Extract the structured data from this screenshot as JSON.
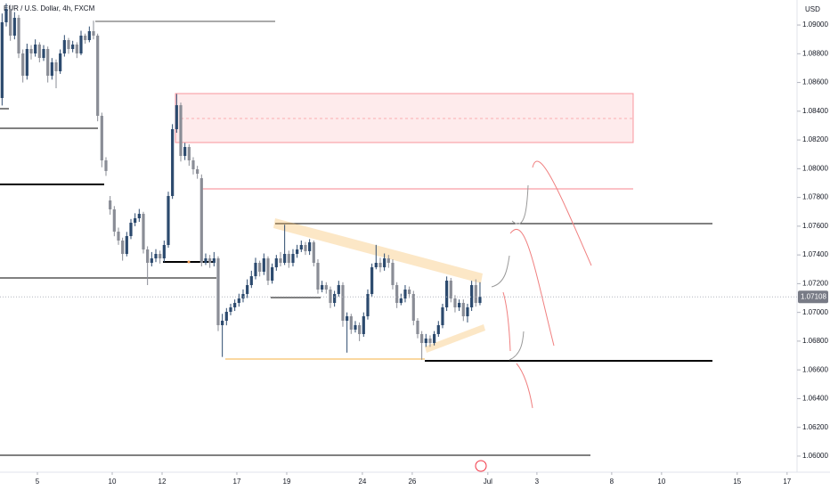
{
  "chart_data": {
    "type": "candlestick",
    "title": "EUR / U.S. Dollar, 4h, FXCM",
    "currency": "USD",
    "up_color": "#2c4a6e",
    "down_color": "#8a8d96",
    "ylim": [
      1.05888,
      1.09174
    ],
    "xlim": [
      -0.5,
      191.3
    ],
    "yticks": [
      {
        "value": 1.06,
        "label": "1.06000"
      },
      {
        "value": 1.062,
        "label": "1.06200"
      },
      {
        "value": 1.064,
        "label": "1.06400"
      },
      {
        "value": 1.066,
        "label": "1.06600"
      },
      {
        "value": 1.068,
        "label": "1.06800"
      },
      {
        "value": 1.07,
        "label": "1.07000"
      },
      {
        "value": 1.072,
        "label": "1.07200"
      },
      {
        "value": 1.074,
        "label": "1.07400"
      },
      {
        "value": 1.076,
        "label": "1.07600"
      },
      {
        "value": 1.078,
        "label": "1.07800"
      },
      {
        "value": 1.08,
        "label": "1.08000"
      },
      {
        "value": 1.082,
        "label": "1.08200"
      },
      {
        "value": 1.084,
        "label": "1.08400"
      },
      {
        "value": 1.086,
        "label": "1.08600"
      },
      {
        "value": 1.088,
        "label": "1.08800"
      },
      {
        "value": 1.09,
        "label": "1.09000"
      }
    ],
    "xticks": [
      {
        "value": 8.5,
        "label": "5"
      },
      {
        "value": 26.5,
        "label": "10"
      },
      {
        "value": 38.5,
        "label": "12"
      },
      {
        "value": 56.5,
        "label": "17"
      },
      {
        "value": 68.5,
        "label": "19"
      },
      {
        "value": 86.7,
        "label": "24"
      },
      {
        "value": 98.7,
        "label": "26"
      },
      {
        "value": 116.9,
        "label": "Jul"
      },
      {
        "value": 128.7,
        "label": "3"
      },
      {
        "value": 146.7,
        "label": "8"
      },
      {
        "value": 158.7,
        "label": "10"
      },
      {
        "value": 176.9,
        "label": "15"
      },
      {
        "value": 188.9,
        "label": "17"
      }
    ],
    "last_price": 1.07108,
    "ohlc": [
      [
        1.08492,
        1.0908,
        1.0844,
        1.09019
      ],
      [
        1.09019,
        1.0915,
        1.0899,
        1.09112
      ],
      [
        1.09112,
        1.0914,
        1.0889,
        1.08926
      ],
      [
        1.08926,
        1.0909,
        1.089,
        1.0905
      ],
      [
        1.0905,
        1.0907,
        1.0877,
        1.08802
      ],
      [
        1.08802,
        1.0883,
        1.086,
        1.08647
      ],
      [
        1.08647,
        1.0887,
        1.0862,
        1.08833
      ],
      [
        1.08833,
        1.0886,
        1.0876,
        1.08802
      ],
      [
        1.08802,
        1.089,
        1.0878,
        1.08864
      ],
      [
        1.08864,
        1.0888,
        1.0874,
        1.08771
      ],
      [
        1.08771,
        1.0886,
        1.0875,
        1.08833
      ],
      [
        1.08833,
        1.0885,
        1.086,
        1.08647
      ],
      [
        1.08647,
        1.0877,
        1.0862,
        1.0874
      ],
      [
        1.0874,
        1.0876,
        1.0856,
        1.08678
      ],
      [
        1.08678,
        1.0883,
        1.0866,
        1.08802
      ],
      [
        1.08802,
        1.0893,
        1.0878,
        1.08895
      ],
      [
        1.08895,
        1.0891,
        1.088,
        1.08833
      ],
      [
        1.08833,
        1.0889,
        1.0881,
        1.08864
      ],
      [
        1.08864,
        1.0888,
        1.0877,
        1.08802
      ],
      [
        1.08802,
        1.0896,
        1.0879,
        1.08926
      ],
      [
        1.08926,
        1.0894,
        1.0887,
        1.08895
      ],
      [
        1.08895,
        1.0899,
        1.0888,
        1.08957
      ],
      [
        1.08957,
        1.0903,
        1.089,
        1.08926
      ],
      [
        1.08926,
        1.0894,
        1.0833,
        1.08368
      ],
      [
        1.08368,
        1.0839,
        1.0801,
        1.08058
      ],
      [
        1.08058,
        1.0808,
        1.0795,
        1.07984
      ],
      [
        1.07779,
        1.0781,
        1.0768,
        1.07717
      ],
      [
        1.07717,
        1.0774,
        1.0753,
        1.07562
      ],
      [
        1.07562,
        1.0759,
        1.0747,
        1.075
      ],
      [
        1.075,
        1.0752,
        1.0736,
        1.07407
      ],
      [
        1.07407,
        1.0756,
        1.0739,
        1.07531
      ],
      [
        1.07531,
        1.0765,
        1.0751,
        1.07624
      ],
      [
        1.07624,
        1.0769,
        1.076,
        1.07655
      ],
      [
        1.07655,
        1.0772,
        1.0763,
        1.07686
      ],
      [
        1.07686,
        1.077,
        1.0741,
        1.07438
      ],
      [
        1.07438,
        1.0746,
        1.0719,
        1.07345
      ],
      [
        1.07345,
        1.0742,
        1.0732,
        1.07376
      ],
      [
        1.07376,
        1.0744,
        1.0735,
        1.07407
      ],
      [
        1.07407,
        1.0743,
        1.0734,
        1.07376
      ],
      [
        1.07376,
        1.075,
        1.0735,
        1.07469
      ],
      [
        1.07469,
        1.0784,
        1.0745,
        1.0781
      ],
      [
        1.0781,
        1.0831,
        1.0779,
        1.08275
      ],
      [
        1.08275,
        1.0852,
        1.0825,
        1.08442
      ],
      [
        1.08442,
        1.0846,
        1.0805,
        1.08089
      ],
      [
        1.08089,
        1.0818,
        1.0806,
        1.08151
      ],
      [
        1.08151,
        1.0817,
        1.0802,
        1.08058
      ],
      [
        1.08058,
        1.0808,
        1.0796,
        1.07996
      ],
      [
        1.07996,
        1.0802,
        1.0793,
        1.07965
      ],
      [
        1.07934,
        1.0796,
        1.0732,
        1.07345
      ],
      [
        1.07345,
        1.0741,
        1.0733,
        1.07376
      ],
      [
        1.07376,
        1.074,
        1.0731,
        1.07345
      ],
      [
        1.07345,
        1.0742,
        1.0732,
        1.07376
      ],
      [
        1.07376,
        1.0739,
        1.0687,
        1.06911
      ],
      [
        1.06911,
        1.0699,
        1.0669,
        1.06942
      ],
      [
        1.06942,
        1.0703,
        1.0691,
        1.07004
      ],
      [
        1.07004,
        1.0706,
        1.0698,
        1.07035
      ],
      [
        1.07035,
        1.0709,
        1.0701,
        1.07066
      ],
      [
        1.07066,
        1.0713,
        1.0704,
        1.07097
      ],
      [
        1.07097,
        1.0716,
        1.0707,
        1.07128
      ],
      [
        1.07128,
        1.0723,
        1.071,
        1.0719
      ],
      [
        1.0719,
        1.0729,
        1.0717,
        1.07252
      ],
      [
        1.07252,
        1.0738,
        1.0723,
        1.07345
      ],
      [
        1.07345,
        1.0736,
        1.0725,
        1.07283
      ],
      [
        1.07283,
        1.0741,
        1.0726,
        1.07376
      ],
      [
        1.07376,
        1.0739,
        1.0719,
        1.07221
      ],
      [
        1.07221,
        1.0734,
        1.072,
        1.07314
      ],
      [
        1.07314,
        1.074,
        1.0729,
        1.07376
      ],
      [
        1.07376,
        1.0742,
        1.0732,
        1.07345
      ],
      [
        1.07345,
        1.0761,
        1.0733,
        1.07407
      ],
      [
        1.07407,
        1.0743,
        1.0731,
        1.07345
      ],
      [
        1.07345,
        1.0744,
        1.0732,
        1.07407
      ],
      [
        1.07407,
        1.0747,
        1.0738,
        1.07438
      ],
      [
        1.07438,
        1.075,
        1.0742,
        1.07469
      ],
      [
        1.07469,
        1.0749,
        1.074,
        1.07426
      ],
      [
        1.07426,
        1.0751,
        1.074,
        1.07488
      ],
      [
        1.07488,
        1.075,
        1.0732,
        1.07345
      ],
      [
        1.07345,
        1.0737,
        1.0713,
        1.07159
      ],
      [
        1.07159,
        1.0722,
        1.0714,
        1.0719
      ],
      [
        1.0719,
        1.0721,
        1.0713,
        1.07159
      ],
      [
        1.07159,
        1.0718,
        1.0703,
        1.07066
      ],
      [
        1.07066,
        1.0715,
        1.0704,
        1.07128
      ],
      [
        1.07128,
        1.0722,
        1.0711,
        1.0719
      ],
      [
        1.0719,
        1.0721,
        1.069,
        1.06942
      ],
      [
        1.06942,
        1.07,
        1.0672,
        1.06973
      ],
      [
        1.06973,
        1.0699,
        1.0685,
        1.0688
      ],
      [
        1.0688,
        1.0694,
        1.0686,
        1.06911
      ],
      [
        1.06911,
        1.0693,
        1.068,
        1.06849
      ],
      [
        1.06849,
        1.07,
        1.0683,
        1.06973
      ],
      [
        1.06973,
        1.0716,
        1.0695,
        1.07128
      ],
      [
        1.07128,
        1.0734,
        1.0711,
        1.07314
      ],
      [
        1.07314,
        1.0747,
        1.073,
        1.07345
      ],
      [
        1.07345,
        1.0738,
        1.0728,
        1.07314
      ],
      [
        1.07314,
        1.0741,
        1.0729,
        1.07376
      ],
      [
        1.07376,
        1.074,
        1.0731,
        1.07345
      ],
      [
        1.07345,
        1.0737,
        1.0716,
        1.0719
      ],
      [
        1.0719,
        1.0721,
        1.0703,
        1.07066
      ],
      [
        1.07066,
        1.0713,
        1.0705,
        1.07097
      ],
      [
        1.07097,
        1.0719,
        1.0707,
        1.07159
      ],
      [
        1.07159,
        1.0718,
        1.071,
        1.07128
      ],
      [
        1.07128,
        1.0715,
        1.0691,
        1.06942
      ],
      [
        1.06942,
        1.0696,
        1.0682,
        1.06849
      ],
      [
        1.06849,
        1.0687,
        1.0667,
        1.06787
      ],
      [
        1.06787,
        1.0685,
        1.0676,
        1.06818
      ],
      [
        1.06818,
        1.0684,
        1.0676,
        1.06787
      ],
      [
        1.06787,
        1.0687,
        1.0677,
        1.06849
      ],
      [
        1.06849,
        1.0694,
        1.0683,
        1.06911
      ],
      [
        1.06911,
        1.0706,
        1.0689,
        1.07035
      ],
      [
        1.07035,
        1.0725,
        1.0701,
        1.07221
      ],
      [
        1.07221,
        1.0724,
        1.0707,
        1.07097
      ],
      [
        1.07097,
        1.0712,
        1.07,
        1.07035
      ],
      [
        1.07035,
        1.0709,
        1.0701,
        1.07066
      ],
      [
        1.07066,
        1.0709,
        1.0694,
        1.06973
      ],
      [
        1.06973,
        1.0706,
        1.0693,
        1.07035
      ],
      [
        1.07035,
        1.0722,
        1.0701,
        1.0719
      ],
      [
        1.0719,
        1.0723,
        1.0704,
        1.07066
      ],
      [
        1.07066,
        1.0721,
        1.0705,
        1.07108
      ]
    ]
  }
}
